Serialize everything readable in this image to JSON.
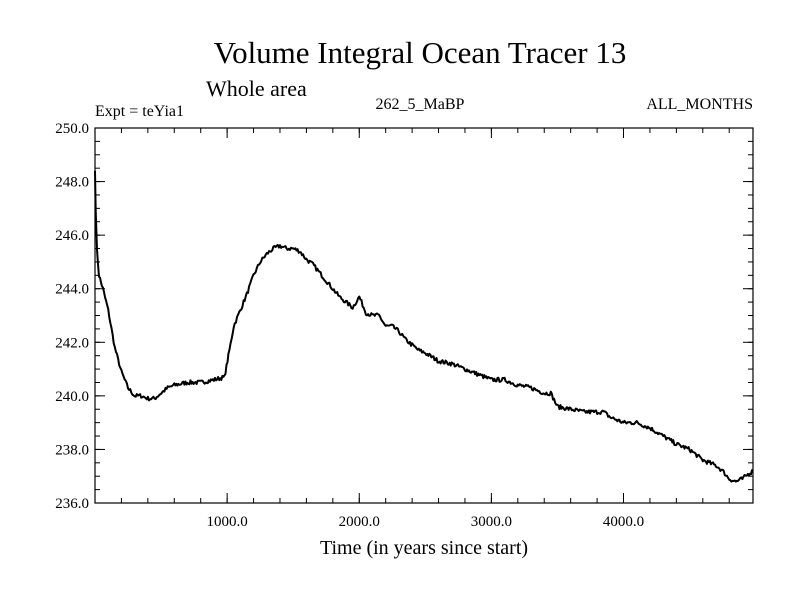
{
  "chart_data": {
    "type": "line",
    "title": "Volume Integral Ocean Tracer 13",
    "subtitle": "Whole area",
    "annotations": {
      "left": "Expt = teYia1",
      "center": "262_5_MaBP",
      "right": "ALL_MONTHS"
    },
    "xlabel": "Time (in years since start)",
    "ylabel": "",
    "xlim": [
      0,
      4980
    ],
    "ylim": [
      236.0,
      250.0
    ],
    "x_ticks": [
      1000,
      2000,
      3000,
      4000
    ],
    "x_tick_labels": [
      "1000.0",
      "2000.0",
      "3000.0",
      "4000.0"
    ],
    "x_minor_step": 200,
    "y_ticks": [
      236,
      238,
      240,
      242,
      244,
      246,
      248,
      250
    ],
    "y_tick_labels": [
      "236.0",
      "238.0",
      "240.0",
      "242.0",
      "244.0",
      "246.0",
      "248.0",
      "250.0"
    ],
    "y_minor_step": 0.5,
    "grid": false,
    "series": [
      {
        "name": "Tracer 13",
        "color": "#000000",
        "x": [
          0,
          5,
          15,
          30,
          60,
          100,
          150,
          200,
          250,
          300,
          350,
          400,
          450,
          500,
          550,
          600,
          700,
          800,
          900,
          980,
          1010,
          1050,
          1100,
          1150,
          1200,
          1250,
          1300,
          1350,
          1400,
          1450,
          1500,
          1550,
          1600,
          1650,
          1700,
          1750,
          1800,
          1850,
          1900,
          1950,
          2000,
          2050,
          2100,
          2150,
          2200,
          2250,
          2300,
          2350,
          2400,
          2450,
          2500,
          2600,
          2700,
          2800,
          2900,
          3000,
          3100,
          3200,
          3300,
          3400,
          3450,
          3500,
          3600,
          3700,
          3800,
          3850,
          3900,
          4000,
          4100,
          4200,
          4300,
          4400,
          4500,
          4600,
          4700,
          4750,
          4800,
          4850,
          4900,
          4950,
          4980
        ],
        "y": [
          248.4,
          247.0,
          245.4,
          244.5,
          244.0,
          243.2,
          241.8,
          240.9,
          240.3,
          240.0,
          240.0,
          239.9,
          239.9,
          240.1,
          240.3,
          240.4,
          240.5,
          240.5,
          240.6,
          240.7,
          241.5,
          242.6,
          243.2,
          243.8,
          244.5,
          245.0,
          245.3,
          245.5,
          245.6,
          245.5,
          245.5,
          245.4,
          245.1,
          244.9,
          244.6,
          244.3,
          244.0,
          243.7,
          243.5,
          243.3,
          243.7,
          243.1,
          243.0,
          243.0,
          242.6,
          242.6,
          242.4,
          242.1,
          241.9,
          241.7,
          241.6,
          241.3,
          241.2,
          241.0,
          240.8,
          240.6,
          240.6,
          240.4,
          240.3,
          240.1,
          240.1,
          239.6,
          239.5,
          239.4,
          239.4,
          239.4,
          239.2,
          239.0,
          239.0,
          238.8,
          238.5,
          238.2,
          238.0,
          237.6,
          237.4,
          237.2,
          236.9,
          236.8,
          236.9,
          237.1,
          237.2
        ]
      }
    ]
  }
}
